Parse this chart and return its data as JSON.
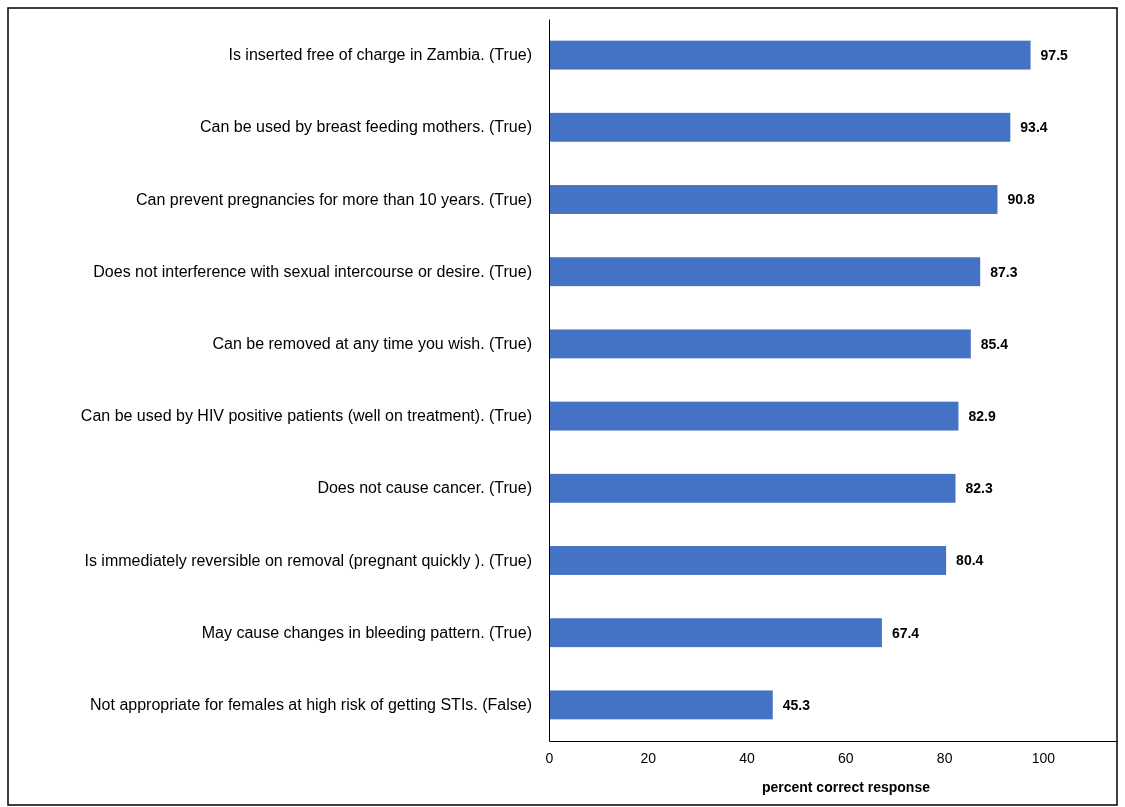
{
  "chart_data": {
    "type": "bar",
    "orientation": "horizontal",
    "xlabel": "percent correct response",
    "categories": [
      "Is inserted free of charge in Zambia. (True)",
      "Can be used by breast feeding mothers. (True)",
      "Can prevent pregnancies for more than 10 years. (True)",
      "Does not interference with sexual intercourse or desire. (True)",
      "Can be removed at any time you wish. (True)",
      "Can be used by HIV positive patients (well on treatment). (True)",
      "Does not cause cancer. (True)",
      "Is immediately reversible on removal (pregnant quickly ). (True)",
      "May cause changes in bleeding pattern. (True)",
      "Not appropriate for females at high risk of getting STIs. (False)"
    ],
    "values": [
      97.5,
      93.4,
      90.8,
      87.3,
      85.4,
      82.9,
      82.3,
      80.4,
      67.4,
      45.3
    ],
    "color": "#4472c4",
    "xlim": [
      0,
      115
    ],
    "xticks": [
      0,
      20,
      40,
      60,
      80,
      100
    ],
    "data_labels": true
  }
}
